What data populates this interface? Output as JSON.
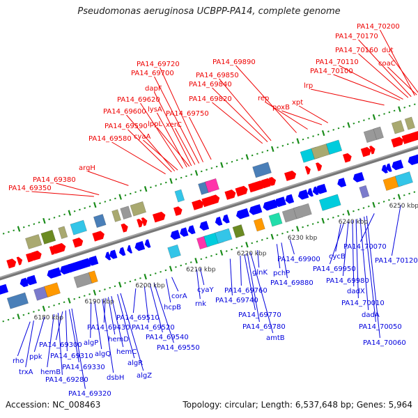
{
  "title": "Pseudomonas aeruginosa UCBPP-PA14, complete genome",
  "footer": {
    "accession": "Accession: NC_008463",
    "summary": "Topology: circular; Length: 6,537,648 bp; Genes: 5,964"
  },
  "colors": {
    "forward_strand": "#ff0000",
    "reverse_strand": "#0000ff",
    "backbone": "#8c8c8c",
    "tick": "#1a8c1a",
    "top_label": "#ee0000",
    "bottom_label": "#0000dd"
  },
  "scale_ticks": [
    "6180 kbp",
    "6190 kbp",
    "6200 kbp",
    "6210 kbp",
    "6220 kbp",
    "6230 kbp",
    "6240 kbp",
    "6250 kbp"
  ],
  "top_labels": [
    {
      "text": "PA14_70200",
      "anchor_kbp": 6258.5
    },
    {
      "text": "PA14_70170",
      "anchor_kbp": 6257.8
    },
    {
      "text": "PA14_70160",
      "anchor_kbp": 6257.2
    },
    {
      "text": "dut",
      "anchor_kbp": 6259.4
    },
    {
      "text": "coaC",
      "anchor_kbp": 6258.9
    },
    {
      "text": "PA14_70110",
      "anchor_kbp": 6256.2
    },
    {
      "text": "PA14_70100",
      "anchor_kbp": 6255.6
    },
    {
      "text": "lrp",
      "anchor_kbp": 6252.5
    },
    {
      "text": "PA14_69890",
      "anchor_kbp": 6235.2
    },
    {
      "text": "PA14_69850",
      "anchor_kbp": 6230.2
    },
    {
      "text": "PA14_69840",
      "anchor_kbp": 6229.5
    },
    {
      "text": "PA14_69820",
      "anchor_kbp": 6228.5
    },
    {
      "text": "rep",
      "anchor_kbp": 6237.4
    },
    {
      "text": "poxB",
      "anchor_kbp": 6240.2
    },
    {
      "text": "xpt",
      "anchor_kbp": 6241.4
    },
    {
      "text": "PA14_69720",
      "anchor_kbp": 6216.8
    },
    {
      "text": "PA14_69700",
      "anchor_kbp": 6216.0
    },
    {
      "text": "dapF",
      "anchor_kbp": 6214.5
    },
    {
      "text": "PA14_69620",
      "anchor_kbp": 6212.8
    },
    {
      "text": "lysA",
      "anchor_kbp": 6213.6
    },
    {
      "text": "PA14_69750",
      "anchor_kbp": 6218.4
    },
    {
      "text": "PA14_69600",
      "anchor_kbp": 6211.2
    },
    {
      "text": "lppL",
      "anchor_kbp": 6214.1
    },
    {
      "text": "xerC",
      "anchor_kbp": 6215.2
    },
    {
      "text": "PA14_69590",
      "anchor_kbp": 6210.6
    },
    {
      "text": "cyaA",
      "anchor_kbp": 6211.8
    },
    {
      "text": "PA14_69580",
      "anchor_kbp": 6209.4
    },
    {
      "text": "argH",
      "anchor_kbp": 6202.1
    },
    {
      "text": "PA14_69380",
      "anchor_kbp": 6196.3
    },
    {
      "text": "PA14_69350",
      "anchor_kbp": 6195.3
    }
  ],
  "bottom_labels": [
    {
      "text": "rho",
      "anchor_kbp": 6176.8
    },
    {
      "text": "trxA",
      "anchor_kbp": 6177.5
    },
    {
      "text": "ppk",
      "anchor_kbp": 6179.6
    },
    {
      "text": "hemB",
      "anchor_kbp": 6181.5
    },
    {
      "text": "PA14_69300",
      "anchor_kbp": 6183.2
    },
    {
      "text": "PA14_69310",
      "anchor_kbp": 6183.8
    },
    {
      "text": "PA14_69280",
      "anchor_kbp": 6182.3
    },
    {
      "text": "PA14_69330",
      "anchor_kbp": 6184.5
    },
    {
      "text": "PA14_69320",
      "anchor_kbp": 6185.0
    },
    {
      "text": "algP",
      "anchor_kbp": 6188.8
    },
    {
      "text": "algQ",
      "anchor_kbp": 6189.5
    },
    {
      "text": "dsbH",
      "anchor_kbp": 6191.0
    },
    {
      "text": "PA14_69430",
      "anchor_kbp": 6191.6
    },
    {
      "text": "hemD",
      "anchor_kbp": 6192.2
    },
    {
      "text": "hemC",
      "anchor_kbp": 6192.8
    },
    {
      "text": "algR",
      "anchor_kbp": 6194.0
    },
    {
      "text": "algZ",
      "anchor_kbp": 6194.6
    },
    {
      "text": "PA14_69510",
      "anchor_kbp": 6197.6
    },
    {
      "text": "PA14_69520",
      "anchor_kbp": 6199.3
    },
    {
      "text": "PA14_69540",
      "anchor_kbp": 6200.4
    },
    {
      "text": "PA14_69550",
      "anchor_kbp": 6201.2
    },
    {
      "text": "hcpB",
      "anchor_kbp": 6203.6
    },
    {
      "text": "corA",
      "anchor_kbp": 6204.7
    },
    {
      "text": "rnk",
      "anchor_kbp": 6209.6
    },
    {
      "text": "cyaY",
      "anchor_kbp": 6210.3
    },
    {
      "text": "PA14_69740",
      "anchor_kbp": 6216.2
    },
    {
      "text": "PA14_69760",
      "anchor_kbp": 6218.2
    },
    {
      "text": "PA14_69770",
      "anchor_kbp": 6219.0
    },
    {
      "text": "PA14_69780",
      "anchor_kbp": 6219.6
    },
    {
      "text": "amtB",
      "anchor_kbp": 6220.2
    },
    {
      "text": "glnK",
      "anchor_kbp": 6221.6
    },
    {
      "text": "pchP",
      "anchor_kbp": 6225.4
    },
    {
      "text": "PA14_69880",
      "anchor_kbp": 6226.3
    },
    {
      "text": "PA14_69900",
      "anchor_kbp": 6228.0
    },
    {
      "text": "cycB",
      "anchor_kbp": 6238.0
    },
    {
      "text": "PA14_69950",
      "anchor_kbp": 6238.6
    },
    {
      "text": "PA14_69980",
      "anchor_kbp": 6239.5
    },
    {
      "text": "dadX",
      "anchor_kbp": 6240.3
    },
    {
      "text": "PA14_70010",
      "anchor_kbp": 6241.0
    },
    {
      "text": "dadA",
      "anchor_kbp": 6241.8
    },
    {
      "text": "PA14_70050",
      "anchor_kbp": 6242.6
    },
    {
      "text": "PA14_70060",
      "anchor_kbp": 6243.1
    },
    {
      "text": "PA14_70070",
      "anchor_kbp": 6244.6
    },
    {
      "text": "PA14_70120",
      "anchor_kbp": 6249.8
    }
  ]
}
